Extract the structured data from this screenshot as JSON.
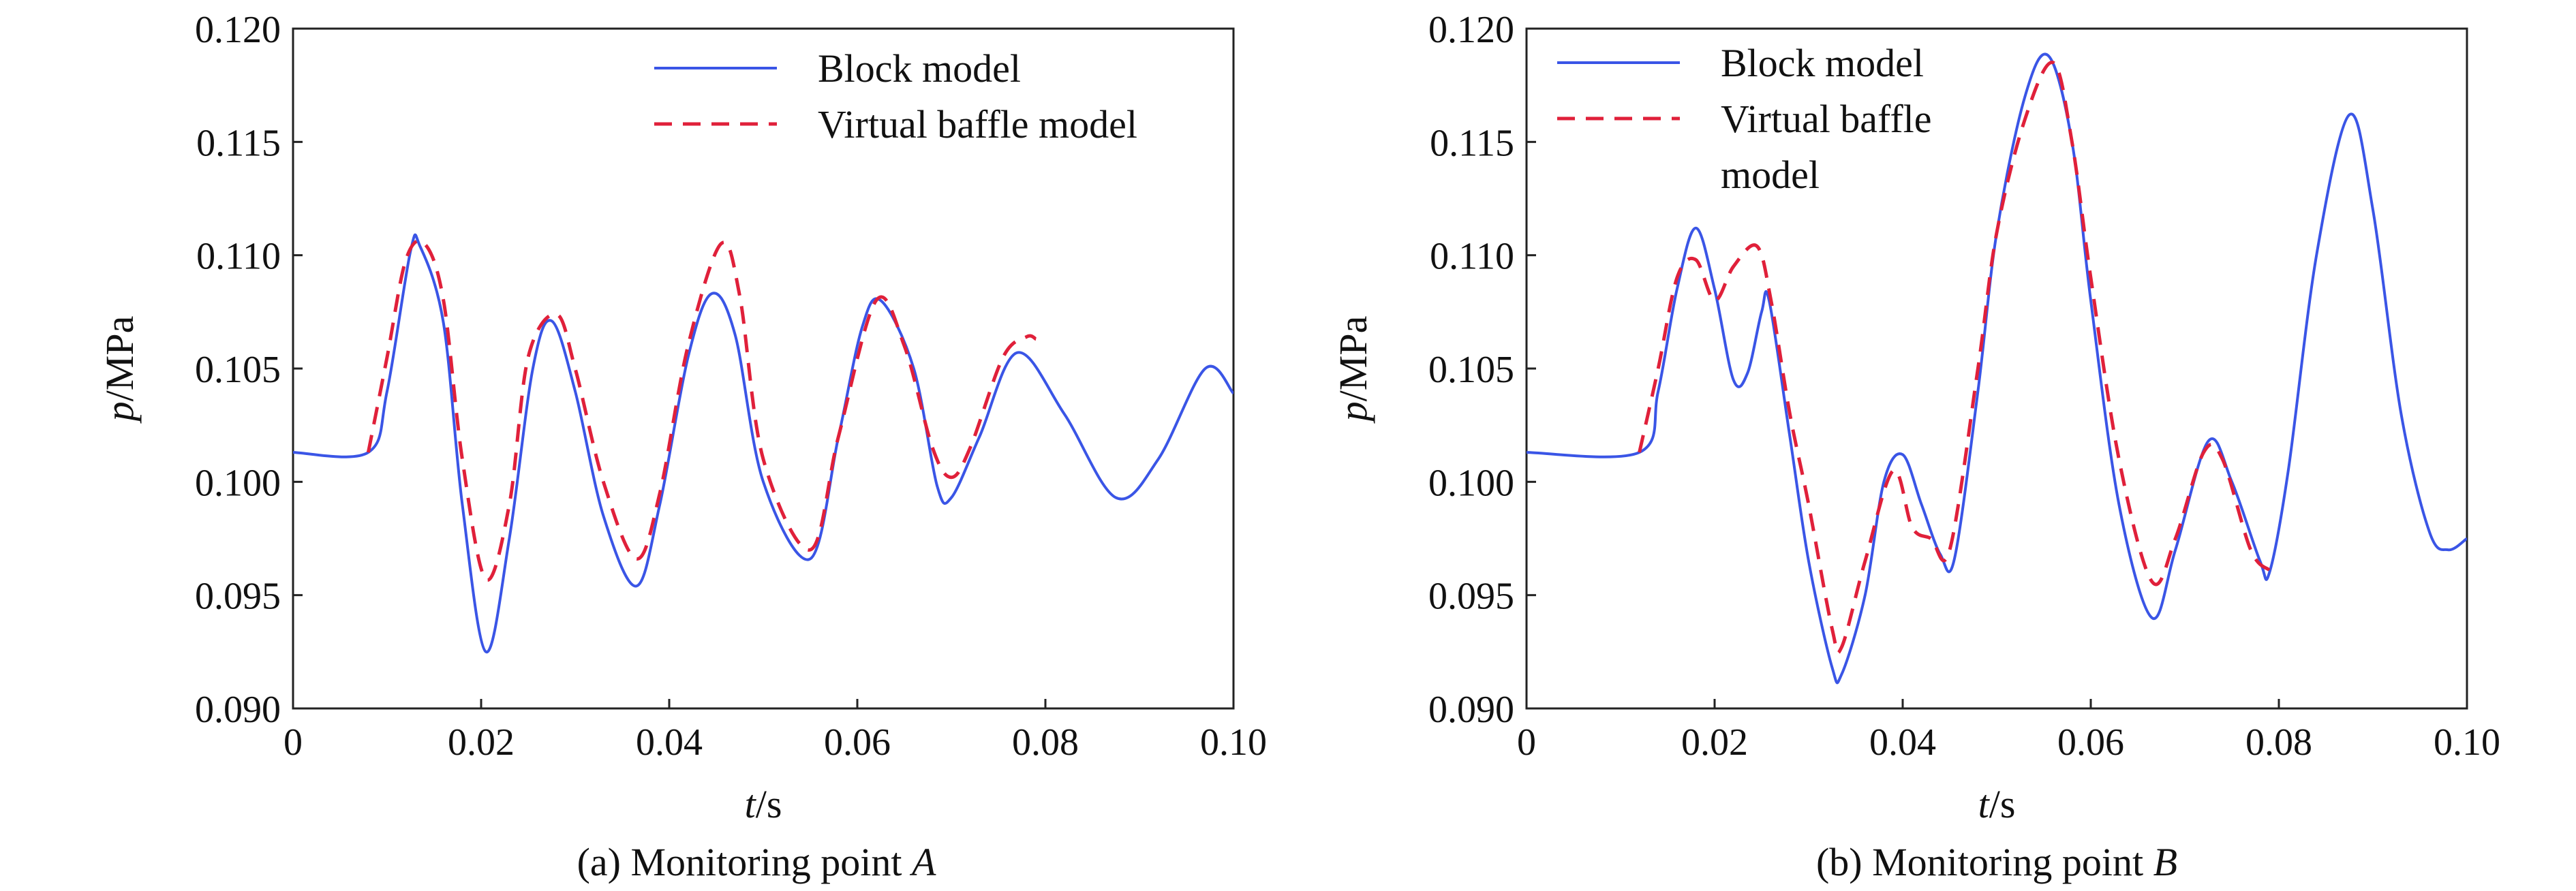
{
  "figure": {
    "panels": [
      {
        "caption_prefix": "(a) Monitoring point ",
        "caption_point": "A"
      },
      {
        "caption_prefix": "(b) Monitoring point ",
        "caption_point": "B"
      }
    ]
  },
  "chart_data": [
    {
      "type": "line",
      "title": "(a) Monitoring point A",
      "xlabel_italic": "t",
      "xlabel_unit": "/s",
      "ylabel_italic": "p",
      "ylabel_unit": "/MPa",
      "xlim": [
        0,
        0.1
      ],
      "ylim": [
        0.09,
        0.12
      ],
      "xticks": [
        "0",
        "0.02",
        "0.04",
        "0.06",
        "0.08",
        "0.10"
      ],
      "xtick_values": [
        0,
        0.02,
        0.04,
        0.06,
        0.08,
        0.1
      ],
      "yticks": [
        "0.090",
        "0.095",
        "0.100",
        "0.105",
        "0.110",
        "0.115",
        "0.120"
      ],
      "ytick_values": [
        0.09,
        0.095,
        0.1,
        0.105,
        0.11,
        0.115,
        0.12
      ],
      "legend_position": "top-right",
      "legend_lines": [
        [
          "Block model"
        ],
        [
          "Virtual baffle model"
        ]
      ],
      "series": [
        {
          "name": "Block model",
          "color": "#3a55e6",
          "style": "solid",
          "x": [
            0,
            0.008,
            0.01,
            0.0125,
            0.0135,
            0.016,
            0.018,
            0.0205,
            0.023,
            0.0255,
            0.0275,
            0.03,
            0.033,
            0.0365,
            0.039,
            0.042,
            0.0445,
            0.047,
            0.05,
            0.055,
            0.058,
            0.0605,
            0.0625,
            0.066,
            0.0685,
            0.07,
            0.073,
            0.077,
            0.082,
            0.0875,
            0.092,
            0.097,
            0.1
          ],
          "y": [
            0.1013,
            0.1013,
            0.104,
            0.1102,
            0.1104,
            0.107,
            0.099,
            0.0925,
            0.0975,
            0.105,
            0.1071,
            0.104,
            0.0985,
            0.0954,
            0.099,
            0.1055,
            0.1083,
            0.1065,
            0.1,
            0.0966,
            0.102,
            0.1068,
            0.108,
            0.105,
            0.0998,
            0.0993,
            0.102,
            0.1057,
            0.103,
            0.0993,
            0.101,
            0.105,
            0.1039
          ]
        },
        {
          "name": "Virtual baffle model",
          "color": "#e0203a",
          "style": "dashed",
          "x": [
            0.008,
            0.01,
            0.012,
            0.014,
            0.016,
            0.018,
            0.0205,
            0.023,
            0.025,
            0.028,
            0.03,
            0.033,
            0.0365,
            0.039,
            0.042,
            0.0455,
            0.0475,
            0.05,
            0.055,
            0.058,
            0.062,
            0.065,
            0.068,
            0.07,
            0.072,
            0.0755,
            0.078,
            0.079
          ],
          "y": [
            0.1013,
            0.1055,
            0.1098,
            0.1105,
            0.108,
            0.101,
            0.0957,
            0.099,
            0.1055,
            0.1074,
            0.105,
            0.1,
            0.0966,
            0.0995,
            0.106,
            0.1105,
            0.1082,
            0.101,
            0.097,
            0.102,
            0.108,
            0.106,
            0.1015,
            0.1002,
            0.1015,
            0.1055,
            0.1064,
            0.1063
          ]
        }
      ]
    },
    {
      "type": "line",
      "title": "(b) Monitoring point B",
      "xlabel_italic": "t",
      "xlabel_unit": "/s",
      "ylabel_italic": "p",
      "ylabel_unit": "/MPa",
      "xlim": [
        0,
        0.1
      ],
      "ylim": [
        0.09,
        0.12
      ],
      "xticks": [
        "0",
        "0.02",
        "0.04",
        "0.06",
        "0.08",
        "0.10"
      ],
      "xtick_values": [
        0,
        0.02,
        0.04,
        0.06,
        0.08,
        0.1
      ],
      "yticks": [
        "0.090",
        "0.095",
        "0.100",
        "0.105",
        "0.110",
        "0.115",
        "0.120"
      ],
      "ytick_values": [
        0.09,
        0.095,
        0.1,
        0.105,
        0.11,
        0.115,
        0.12
      ],
      "legend_position": "top-left",
      "legend_lines": [
        [
          "Block model"
        ],
        [
          "Virtual baffle",
          "model"
        ]
      ],
      "series": [
        {
          "name": "Block model",
          "color": "#3a55e6",
          "style": "solid",
          "x": [
            0,
            0.012,
            0.014,
            0.016,
            0.018,
            0.02,
            0.022,
            0.0235,
            0.025,
            0.0258,
            0.028,
            0.03,
            0.0325,
            0.0335,
            0.036,
            0.038,
            0.04,
            0.042,
            0.044,
            0.0455,
            0.048,
            0.05,
            0.053,
            0.0555,
            0.058,
            0.06,
            0.063,
            0.0665,
            0.069,
            0.0725,
            0.075,
            0.078,
            0.079,
            0.081,
            0.084,
            0.0875,
            0.09,
            0.093,
            0.096,
            0.098,
            0.1
          ],
          "y": [
            0.1013,
            0.1013,
            0.104,
            0.1085,
            0.1112,
            0.1085,
            0.1045,
            0.1048,
            0.1075,
            0.108,
            0.102,
            0.0965,
            0.0918,
            0.0915,
            0.095,
            0.1,
            0.1012,
            0.099,
            0.0968,
            0.0966,
            0.104,
            0.111,
            0.117,
            0.1188,
            0.115,
            0.108,
            0.099,
            0.094,
            0.097,
            0.1018,
            0.1,
            0.0965,
            0.096,
            0.1005,
            0.11,
            0.1162,
            0.112,
            0.103,
            0.0978,
            0.097,
            0.0975
          ]
        },
        {
          "name": "Virtual baffle model",
          "color": "#e0203a",
          "style": "dashed",
          "x": [
            0.012,
            0.014,
            0.016,
            0.018,
            0.02,
            0.022,
            0.0245,
            0.026,
            0.028,
            0.03,
            0.0325,
            0.0335,
            0.036,
            0.039,
            0.041,
            0.043,
            0.045,
            0.048,
            0.05,
            0.053,
            0.056,
            0.058,
            0.06,
            0.063,
            0.0665,
            0.069,
            0.072,
            0.074,
            0.077,
            0.079
          ],
          "y": [
            0.1013,
            0.105,
            0.109,
            0.1098,
            0.108,
            0.1095,
            0.1104,
            0.108,
            0.103,
            0.099,
            0.0935,
            0.0927,
            0.0965,
            0.1005,
            0.098,
            0.0975,
            0.097,
            0.105,
            0.111,
            0.116,
            0.1185,
            0.115,
            0.109,
            0.101,
            0.0956,
            0.0975,
            0.1013,
            0.101,
            0.097,
            0.0961
          ]
        }
      ]
    }
  ]
}
